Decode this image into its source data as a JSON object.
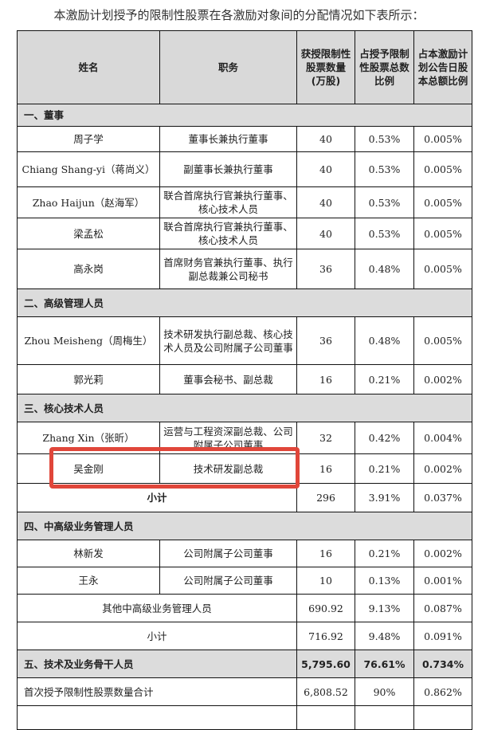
{
  "caption": "本激励计划授予的限制性股票在各激励对象间的分配情况如下表所示：",
  "headers": [
    "姓名",
    "职务",
    "获授限制性股票数量(万股)",
    "占授予限制性股票总数比例",
    "占本激励计划公告日股本总额比例"
  ],
  "sections": {
    "s1": "一、董事",
    "s2": "二、高级管理人员",
    "s3": "三、核心技术人员",
    "s4": "四、中高级业务管理人员",
    "s5": {
      "label": "五、技术及业务骨干人员",
      "shares": "5,795.60",
      "pct_grant": "76.61%",
      "pct_total": "0.734%"
    }
  },
  "rows": [
    {
      "name": "周子学",
      "title": "董事长兼执行董事",
      "shares": "40",
      "pct_grant": "0.53%",
      "pct_total": "0.005%"
    },
    {
      "name": "Chiang Shang-yi（蒋尚义）",
      "title": "副董事长兼执行董事",
      "shares": "40",
      "pct_grant": "0.53%",
      "pct_total": "0.005%"
    },
    {
      "name": "Zhao Haijun（赵海军）",
      "title": "联合首席执行官兼执行董事、核心技术人员",
      "shares": "40",
      "pct_grant": "0.53%",
      "pct_total": "0.005%"
    },
    {
      "name": "梁孟松",
      "title": "联合首席执行官兼执行董事、核心技术人员",
      "shares": "40",
      "pct_grant": "0.53%",
      "pct_total": "0.005%"
    },
    {
      "name": "高永岗",
      "title": "首席财务官兼执行董事、执行副总裁兼公司秘书",
      "shares": "36",
      "pct_grant": "0.48%",
      "pct_total": "0.005%"
    },
    {
      "name": "Zhou Meisheng（周梅生）",
      "title": "技术研发执行副总裁、核心技术人员及公司附属子公司董事",
      "shares": "36",
      "pct_grant": "0.48%",
      "pct_total": "0.005%"
    },
    {
      "name": "郭光莉",
      "title": "董事会秘书、副总裁",
      "shares": "16",
      "pct_grant": "0.21%",
      "pct_total": "0.002%"
    },
    {
      "name": "Zhang Xin（张昕）",
      "title": "运营与工程资深副总裁、公司附属子公司董事",
      "shares": "32",
      "pct_grant": "0.42%",
      "pct_total": "0.004%"
    },
    {
      "name": "吴金刚",
      "title": "技术研发副总裁",
      "shares": "16",
      "pct_grant": "0.21%",
      "pct_total": "0.002%"
    },
    {
      "name": "林新发",
      "title": "公司附属子公司董事",
      "shares": "16",
      "pct_grant": "0.21%",
      "pct_total": "0.002%"
    },
    {
      "name": "王永",
      "title": "公司附属子公司董事",
      "shares": "10",
      "pct_grant": "0.13%",
      "pct_total": "0.001%"
    }
  ],
  "subtotal3": {
    "label": "小计",
    "shares": "296",
    "pct_grant": "3.91%",
    "pct_total": "0.037%"
  },
  "others4": {
    "label": "其他中高级业务管理人员",
    "shares": "690.92",
    "pct_grant": "9.13%",
    "pct_total": "0.087%"
  },
  "subtotal4": {
    "label": "小计",
    "shares": "716.92",
    "pct_grant": "9.48%",
    "pct_total": "0.091%"
  },
  "total_first": {
    "label": "首次授予限制性股票数量合计",
    "shares": "6,808.52",
    "pct_grant": "90%",
    "pct_total": "0.862%"
  },
  "highlight_color": "#e0463a"
}
